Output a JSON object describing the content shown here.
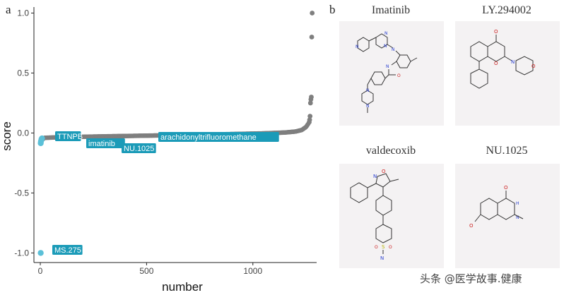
{
  "panel_a_letter": "a",
  "panel_b_letter": "b",
  "chart_data": {
    "type": "scatter",
    "xlabel": "number",
    "ylabel": "score",
    "xlim": [
      -30,
      1300
    ],
    "ylim": [
      -1.08,
      1.05
    ],
    "x_ticks": [
      0,
      500,
      1000
    ],
    "y_ticks": [
      1.0,
      0.5,
      0.0,
      -0.5,
      -1.0
    ],
    "y_tick_labels": [
      "1.0",
      "0.5",
      "0.0",
      "-0.5",
      "-1.0"
    ],
    "x_tick_labels": [
      "0",
      "500",
      "1000"
    ],
    "grid": false,
    "point_color_default": "#7f7f7f",
    "point_color_highlight": "#5bc0d8",
    "n_points": 1290,
    "curve_profile": [
      [
        0,
        -0.07
      ],
      [
        20,
        -0.04
      ],
      [
        100,
        -0.035
      ],
      [
        300,
        -0.028
      ],
      [
        500,
        -0.022
      ],
      [
        700,
        -0.016
      ],
      [
        900,
        -0.009
      ],
      [
        1050,
        -0.003
      ],
      [
        1150,
        0.004
      ],
      [
        1200,
        0.012
      ],
      [
        1230,
        0.025
      ],
      [
        1250,
        0.05
      ],
      [
        1262,
        0.08
      ]
    ],
    "outliers": [
      {
        "x": 1265,
        "y": 0.09
      },
      {
        "x": 1267,
        "y": 0.11
      },
      {
        "x": 1269,
        "y": 0.14
      },
      {
        "x": 1271,
        "y": 0.25
      },
      {
        "x": 1273,
        "y": 0.28
      },
      {
        "x": 1275,
        "y": 0.3
      },
      {
        "x": 1277,
        "y": 0.8
      },
      {
        "x": 1279,
        "y": 1.0
      }
    ],
    "highlighted": [
      {
        "x": 2,
        "y": -1.0
      },
      {
        "x": 2,
        "y": -0.085
      },
      {
        "x": 3,
        "y": -0.07
      },
      {
        "x": 5,
        "y": -0.06
      },
      {
        "x": 6,
        "y": -0.05
      },
      {
        "x": 8,
        "y": -0.045
      }
    ],
    "annotations": [
      {
        "label": "TTNPB",
        "x": 15,
        "y": -0.03,
        "box_x": 78,
        "box_y": 186
      },
      {
        "label": "imatinib",
        "x": 230,
        "y": -0.03,
        "box_x": 122,
        "box_y": 196
      },
      {
        "label": "NU.1025",
        "x": 380,
        "y": -0.03,
        "box_x": 172,
        "box_y": 203
      },
      {
        "label": "arachidonyltrifluoromethane",
        "x": 560,
        "y": -0.02,
        "box_x": 224,
        "box_y": 187
      },
      {
        "label": "MS.275",
        "x": 5,
        "y": -1.0,
        "box_x": 74,
        "box_y": 347
      }
    ],
    "annotation_color": "#1b9bb8"
  },
  "molecules": [
    {
      "name": "Imatinib"
    },
    {
      "name": "LY.294002"
    },
    {
      "name": "valdecoxib"
    },
    {
      "name": "NU.1025"
    }
  ],
  "watermark": "头条 @医学故事.健康"
}
